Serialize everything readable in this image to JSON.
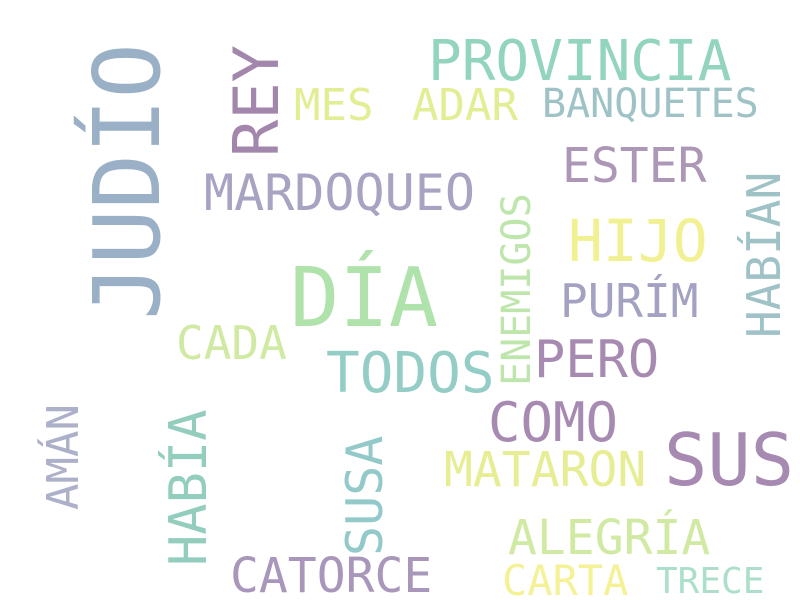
{
  "words": {
    "judio": {
      "text": "JUDÍO",
      "color": "#8fa8c0"
    },
    "rey": {
      "text": "REY",
      "color": "#9a7aa2"
    },
    "provincia": {
      "text": "PROVINCIA",
      "color": "#88d0b8"
    },
    "mes": {
      "text": "MES",
      "color": "#e0ec88"
    },
    "adar": {
      "text": "ADAR",
      "color": "#e0ec88"
    },
    "banquetes": {
      "text": "BANQUETES",
      "color": "#94bcc0"
    },
    "mardoqueo": {
      "text": "MARDOQUEO",
      "color": "#9e9abc"
    },
    "enemigos": {
      "text": "ENEMIGOS",
      "color": "#b8e4a4"
    },
    "ester": {
      "text": "ESTER",
      "color": "#a58cb0"
    },
    "habian": {
      "text": "HABÍAN",
      "color": "#94bcc0"
    },
    "hijo": {
      "text": "HIJO",
      "color": "#f0f088"
    },
    "dia": {
      "text": "DÍA",
      "color": "#a8e0a4"
    },
    "purim": {
      "text": "PURÍM",
      "color": "#9a98bc"
    },
    "cada": {
      "text": "CADA",
      "color": "#cce89a"
    },
    "todos": {
      "text": "TODOS",
      "color": "#88c8c0"
    },
    "pero": {
      "text": "PERO",
      "color": "#9e7eaa"
    },
    "aman": {
      "text": "AMÁN",
      "color": "#a4a8c4"
    },
    "habia": {
      "text": "HABÍA",
      "color": "#88c8b8"
    },
    "susa": {
      "text": "SUSA",
      "color": "#88c4c4"
    },
    "como": {
      "text": "COMO",
      "color": "#9e7eaa"
    },
    "sus": {
      "text": "SUS",
      "color": "#9e7eaa"
    },
    "mataron": {
      "text": "MATARON",
      "color": "#e4ec88"
    },
    "alegria": {
      "text": "ALEGRÍA",
      "color": "#cce89a"
    },
    "catorce": {
      "text": "CATORCE",
      "color": "#a08cb4"
    },
    "carta": {
      "text": "CARTA",
      "color": "#f4f08c"
    },
    "trece": {
      "text": "TRECE",
      "color": "#a4dcc4"
    }
  }
}
